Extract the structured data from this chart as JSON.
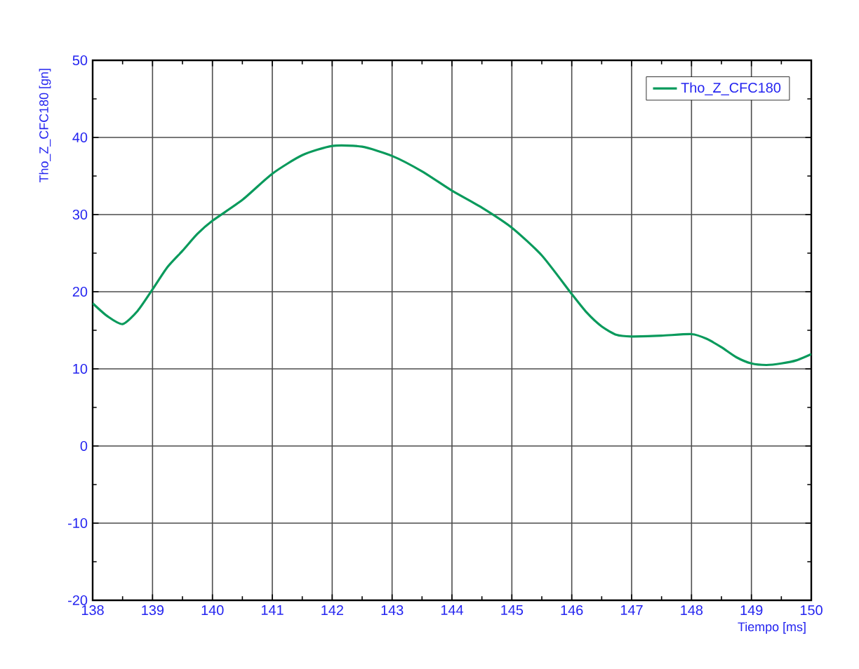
{
  "chart_data": {
    "type": "line",
    "xlabel": "Tiempo [ms]",
    "ylabel": "Tho_Z_CFC180 [gn]",
    "xlim": [
      138,
      150
    ],
    "ylim": [
      -20,
      50
    ],
    "xticks": [
      138,
      139,
      140,
      141,
      142,
      143,
      144,
      145,
      146,
      147,
      148,
      149,
      150
    ],
    "yticks": [
      -20,
      -10,
      0,
      10,
      20,
      30,
      40,
      50
    ],
    "grid": true,
    "legend": "top right",
    "marker": "none",
    "line_style": "solid",
    "series": [
      {
        "name": "Tho_Z_CFC180",
        "color": "#0a9a5c",
        "x": [
          138,
          138.25,
          138.5,
          138.75,
          139,
          139.25,
          139.5,
          139.75,
          140,
          140.5,
          141,
          141.5,
          142,
          142.5,
          143,
          143.5,
          144,
          144.5,
          145,
          145.5,
          146,
          146.25,
          146.5,
          146.75,
          147,
          147.5,
          148,
          148.25,
          148.5,
          148.75,
          149,
          149.25,
          149.5,
          149.75,
          150
        ],
        "values": [
          18.5,
          16.8,
          15.8,
          17.5,
          20.3,
          23.2,
          25.3,
          27.5,
          29.2,
          31.9,
          35.3,
          37.7,
          38.9,
          38.8,
          37.6,
          35.6,
          33.1,
          30.9,
          28.3,
          24.7,
          19.7,
          17.3,
          15.5,
          14.4,
          14.2,
          14.3,
          14.5,
          13.9,
          12.8,
          11.5,
          10.7,
          10.5,
          10.7,
          11.1,
          11.9
        ]
      }
    ]
  }
}
